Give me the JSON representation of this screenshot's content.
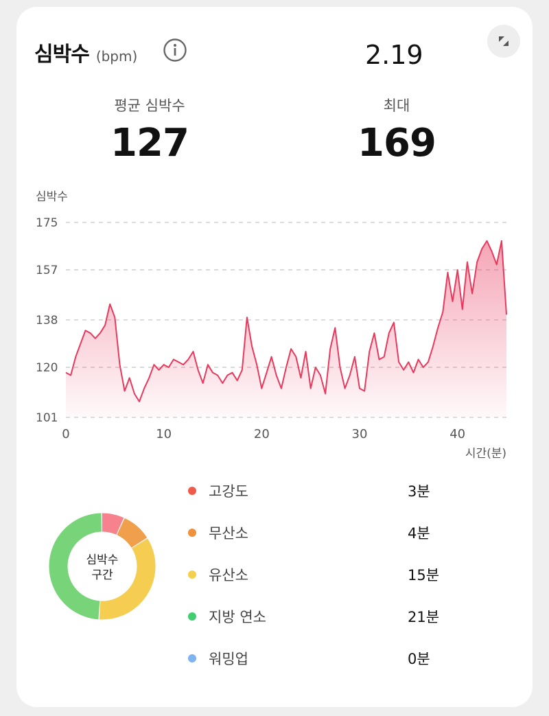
{
  "header": {
    "title": "심박수",
    "unit": "(bpm)",
    "top_value": "2.19"
  },
  "stats": {
    "avg_label": "평균 심박수",
    "avg_value": "127",
    "max_label": "최대",
    "max_value": "169"
  },
  "chart_data": {
    "type": "area",
    "ylabel": "심박수",
    "xlabel": "시간(분)",
    "yticks": [
      101,
      120,
      138,
      157,
      175
    ],
    "xticks": [
      0,
      10,
      20,
      30,
      40
    ],
    "ylim": [
      101,
      175
    ],
    "xlim": [
      0,
      45
    ],
    "grid": true,
    "color": "#e8385c",
    "x": [
      0,
      0.5,
      1,
      1.5,
      2,
      2.5,
      3,
      3.5,
      4,
      4.5,
      5,
      5.5,
      6,
      6.5,
      7,
      7.5,
      8,
      8.5,
      9,
      9.5,
      10,
      10.5,
      11,
      11.5,
      12,
      12.5,
      13,
      13.5,
      14,
      14.5,
      15,
      15.5,
      16,
      16.5,
      17,
      17.5,
      18,
      18.5,
      19,
      19.5,
      20,
      20.5,
      21,
      21.5,
      22,
      22.5,
      23,
      23.5,
      24,
      24.5,
      25,
      25.5,
      26,
      26.5,
      27,
      27.5,
      28,
      28.5,
      29,
      29.5,
      30,
      30.5,
      31,
      31.5,
      32,
      32.5,
      33,
      33.5,
      34,
      34.5,
      35,
      35.5,
      36,
      36.5,
      37,
      37.5,
      38,
      38.5,
      39,
      39.5,
      40,
      40.5,
      41,
      41.5,
      42,
      42.5,
      43,
      43.5,
      44,
      44.5,
      45
    ],
    "y": [
      118,
      117,
      124,
      129,
      134,
      133,
      131,
      133,
      136,
      144,
      139,
      121,
      111,
      116,
      110,
      107,
      112,
      116,
      121,
      119,
      121,
      120,
      123,
      122,
      121,
      123,
      126,
      119,
      114,
      121,
      118,
      117,
      114,
      117,
      118,
      115,
      119,
      139,
      128,
      121,
      112,
      118,
      124,
      117,
      112,
      120,
      127,
      124,
      116,
      126,
      112,
      120,
      117,
      110,
      127,
      135,
      120,
      112,
      117,
      124,
      112,
      111,
      126,
      133,
      123,
      124,
      133,
      137,
      122,
      119,
      122,
      118,
      123,
      120,
      122,
      128,
      135,
      141,
      156,
      145,
      157,
      142,
      160,
      148,
      160,
      165,
      168,
      164,
      159,
      168,
      140
    ]
  },
  "zones": {
    "title_line1": "심박수",
    "title_line2": "구간",
    "items": [
      {
        "label": "고강도",
        "value": "3분",
        "minutes": 3,
        "color": "#f05a4b",
        "ring_color": "#f5828c"
      },
      {
        "label": "무산소",
        "value": "4분",
        "minutes": 4,
        "color": "#f0913c",
        "ring_color": "#f0a04b"
      },
      {
        "label": "유산소",
        "value": "15분",
        "minutes": 15,
        "color": "#f5d04f",
        "ring_color": "#f5cd50"
      },
      {
        "label": "지방 연소",
        "value": "21분",
        "minutes": 21,
        "color": "#3fcf6e",
        "ring_color": "#78d478"
      },
      {
        "label": "워밍업",
        "value": "0분",
        "minutes": 0,
        "color": "#7fb3f0",
        "ring_color": "#7fb3f0"
      }
    ]
  }
}
